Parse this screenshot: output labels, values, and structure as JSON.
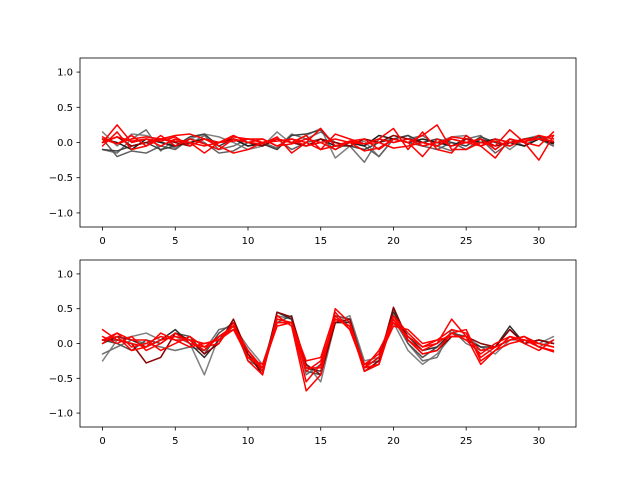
{
  "chart_data": [
    {
      "type": "line",
      "title": "",
      "xlabel": "",
      "ylabel": "",
      "xlim": [
        -1.55,
        32.55
      ],
      "ylim": [
        -1.2,
        1.2
      ],
      "xticks": [
        0,
        5,
        10,
        15,
        20,
        25,
        30
      ],
      "yticks": [
        -1.0,
        -0.5,
        0.0,
        0.5,
        1.0
      ],
      "xtick_labels": [
        "0",
        "5",
        "10",
        "15",
        "20",
        "25",
        "30"
      ],
      "ytick_labels": [
        "−1.0",
        "−0.5",
        "0.0",
        "0.5",
        "1.0"
      ],
      "grid": false,
      "x": [
        0,
        1,
        2,
        3,
        4,
        5,
        6,
        7,
        8,
        9,
        10,
        11,
        12,
        13,
        14,
        15,
        16,
        17,
        18,
        19,
        20,
        21,
        22,
        23,
        24,
        25,
        26,
        27,
        28,
        29,
        30,
        31
      ],
      "series": [
        {
          "color": "#808080",
          "values": [
            0.15,
            -0.05,
            0.12,
            0.1,
            0.02,
            -0.08,
            0.05,
            0.12,
            0.08,
            0.0,
            -0.1,
            -0.05,
            0.15,
            -0.02,
            0.1,
            0.2,
            -0.22,
            -0.05,
            0.02,
            -0.2,
            0.05,
            0.1,
            -0.05,
            0.0,
            0.08,
            0.1,
            -0.05,
            0.05,
            -0.1,
            0.05,
            0.1,
            0.05
          ]
        },
        {
          "color": "#707070",
          "values": [
            -0.1,
            -0.15,
            0.05,
            0.18,
            -0.12,
            0.05,
            -0.02,
            0.1,
            -0.1,
            -0.05,
            0.05,
            0.0,
            -0.08,
            0.12,
            0.05,
            0.15,
            0.0,
            -0.05,
            -0.28,
            0.05,
            0.0,
            0.05,
            0.1,
            -0.05,
            -0.12,
            0.05,
            0.1,
            -0.1,
            0.05,
            -0.05,
            0.1,
            0.0
          ]
        },
        {
          "color": "#606060",
          "values": [
            0.05,
            -0.2,
            -0.12,
            -0.15,
            -0.05,
            -0.1,
            0.05,
            0.0,
            -0.15,
            -0.12,
            0.0,
            -0.05,
            0.05,
            -0.1,
            0.0,
            0.05,
            -0.1,
            0.0,
            -0.05,
            -0.2,
            0.05,
            0.0,
            -0.05,
            -0.1,
            0.0,
            -0.1,
            0.05,
            -0.15,
            0.0,
            -0.05,
            0.05,
            -0.05
          ]
        },
        {
          "color": "#404040",
          "values": [
            -0.1,
            -0.12,
            -0.05,
            0.0,
            -0.1,
            -0.05,
            0.08,
            0.12,
            -0.05,
            0.05,
            -0.05,
            -0.02,
            -0.1,
            0.1,
            0.12,
            0.18,
            -0.05,
            -0.05,
            -0.1,
            0.0,
            0.05,
            0.1,
            0.0,
            0.05,
            0.0,
            -0.05,
            0.08,
            0.0,
            -0.05,
            0.05,
            0.08,
            0.0
          ]
        },
        {
          "color": "#202020",
          "values": [
            0.05,
            0.0,
            -0.1,
            0.05,
            0.0,
            -0.05,
            0.0,
            0.05,
            0.0,
            0.05,
            -0.05,
            0.0,
            0.05,
            0.0,
            -0.05,
            0.05,
            -0.05,
            0.0,
            -0.05,
            0.1,
            0.05,
            0.0,
            0.05,
            0.0,
            -0.05,
            0.05,
            0.0,
            0.05,
            0.0,
            -0.05,
            0.05,
            -0.02
          ]
        },
        {
          "color": "#8b0000",
          "values": [
            0.0,
            0.08,
            -0.05,
            0.0,
            0.05,
            0.0,
            -0.05,
            0.05,
            0.0,
            0.05,
            0.0,
            -0.05,
            0.05,
            0.0,
            -0.05,
            0.05,
            0.0,
            -0.05,
            0.05,
            0.0,
            0.1,
            0.05,
            0.0,
            -0.05,
            0.05,
            0.0,
            0.05,
            -0.05,
            0.0,
            0.05,
            0.05,
            0.0
          ]
        },
        {
          "color": "#ff0000",
          "values": [
            0.08,
            -0.02,
            0.1,
            -0.05,
            0.05,
            0.02,
            0.0,
            -0.15,
            0.0,
            0.1,
            0.0,
            -0.02,
            0.08,
            -0.15,
            0.0,
            0.2,
            -0.05,
            0.0,
            -0.12,
            -0.08,
            0.05,
            0.0,
            -0.2,
            0.05,
            -0.05,
            0.0,
            0.05,
            -0.1,
            0.05,
            0.0,
            -0.05,
            0.15
          ]
        },
        {
          "color": "#ff0000",
          "values": [
            0.0,
            0.25,
            0.0,
            0.05,
            0.02,
            0.08,
            -0.05,
            0.05,
            -0.05,
            -0.15,
            -0.1,
            0.0,
            0.05,
            0.0,
            0.1,
            -0.1,
            0.12,
            0.05,
            -0.02,
            0.05,
            0.2,
            -0.1,
            0.15,
            -0.1,
            -0.15,
            0.1,
            -0.05,
            -0.22,
            0.05,
            0.0,
            0.1,
            0.05
          ]
        },
        {
          "color": "#ff0000",
          "values": [
            -0.05,
            0.15,
            -0.1,
            -0.05,
            0.1,
            -0.05,
            0.05,
            -0.02,
            -0.1,
            0.05,
            0.0,
            0.05,
            -0.05,
            -0.02,
            0.05,
            0.0,
            -0.1,
            0.02,
            0.05,
            -0.1,
            0.05,
            0.0,
            0.1,
            0.25,
            -0.1,
            -0.1,
            0.0,
            -0.05,
            0.18,
            0.0,
            -0.25,
            0.1
          ]
        },
        {
          "color": "#ff0000",
          "values": [
            0.05,
            -0.02,
            0.05,
            0.08,
            0.05,
            0.1,
            0.12,
            0.05,
            0.0,
            0.08,
            0.05,
            0.05,
            -0.05,
            0.05,
            0.0,
            -0.1,
            -0.05,
            0.02,
            -0.02,
            0.0,
            -0.08,
            -0.05,
            0.0,
            -0.05,
            0.08,
            0.05,
            -0.05,
            0.02,
            -0.05,
            0.05,
            0.05,
            0.1
          ]
        },
        {
          "color": "#ff0000",
          "values": [
            0.0,
            0.08,
            0.02,
            0.05,
            -0.05,
            0.05,
            0.0,
            -0.05,
            0.0,
            0.02,
            0.05,
            0.0,
            0.02,
            0.05,
            -0.05,
            0.0,
            0.05,
            0.0,
            -0.02,
            0.05,
            0.0,
            0.05,
            -0.05,
            0.0,
            0.05,
            0.0,
            -0.05,
            0.05,
            0.0,
            0.02,
            0.05,
            0.02
          ]
        }
      ]
    },
    {
      "type": "line",
      "title": "",
      "xlabel": "",
      "ylabel": "",
      "xlim": [
        -1.55,
        32.55
      ],
      "ylim": [
        -1.2,
        1.2
      ],
      "xticks": [
        0,
        5,
        10,
        15,
        20,
        25,
        30
      ],
      "yticks": [
        -1.0,
        -0.5,
        0.0,
        0.5,
        1.0
      ],
      "xtick_labels": [
        "0",
        "5",
        "10",
        "15",
        "20",
        "25",
        "30"
      ],
      "ytick_labels": [
        "−1.0",
        "−0.5",
        "0.0",
        "0.5",
        "1.0"
      ],
      "grid": false,
      "x": [
        0,
        1,
        2,
        3,
        4,
        5,
        6,
        7,
        8,
        9,
        10,
        11,
        12,
        13,
        14,
        15,
        16,
        17,
        18,
        19,
        20,
        21,
        22,
        23,
        24,
        25,
        26,
        27,
        28,
        29,
        30,
        31
      ],
      "series": [
        {
          "color": "#808080",
          "values": [
            -0.25,
            0.05,
            0.1,
            0.15,
            0.05,
            0.1,
            0.0,
            -0.45,
            0.1,
            0.25,
            -0.05,
            -0.3,
            0.35,
            0.3,
            -0.3,
            -0.55,
            0.3,
            0.4,
            -0.25,
            -0.2,
            0.3,
            -0.1,
            -0.3,
            -0.15,
            0.1,
            0.1,
            -0.05,
            -0.15,
            0.05,
            0.05,
            0.0,
            0.1
          ]
        },
        {
          "color": "#707070",
          "values": [
            -0.15,
            -0.05,
            0.05,
            0.0,
            -0.05,
            -0.1,
            -0.05,
            -0.1,
            0.2,
            0.25,
            -0.25,
            -0.35,
            0.4,
            0.35,
            -0.45,
            -0.3,
            0.35,
            0.3,
            -0.4,
            -0.3,
            0.35,
            0.0,
            -0.25,
            -0.2,
            0.2,
            0.0,
            -0.1,
            -0.05,
            0.05,
            0.1,
            -0.05,
            0.05
          ]
        },
        {
          "color": "#505050",
          "values": [
            0.05,
            0.0,
            -0.1,
            0.05,
            0.0,
            0.15,
            0.1,
            -0.15,
            0.15,
            0.3,
            -0.2,
            -0.4,
            0.3,
            0.4,
            -0.4,
            -0.45,
            0.4,
            0.35,
            -0.3,
            -0.25,
            0.5,
            0.0,
            -0.2,
            -0.05,
            0.15,
            0.1,
            -0.1,
            -0.05,
            0.2,
            0.0,
            0.05,
            0.0
          ]
        },
        {
          "color": "#303030",
          "values": [
            0.0,
            0.1,
            0.05,
            -0.05,
            0.05,
            0.2,
            0.0,
            -0.2,
            0.05,
            0.3,
            -0.15,
            -0.4,
            0.45,
            0.35,
            -0.35,
            -0.4,
            0.3,
            0.3,
            -0.35,
            -0.2,
            0.45,
            0.1,
            -0.1,
            -0.05,
            0.15,
            0.05,
            -0.05,
            -0.05,
            0.25,
            0.0,
            0.05,
            0.0
          ]
        },
        {
          "color": "#8b0000",
          "values": [
            0.05,
            0.05,
            0.0,
            -0.28,
            -0.2,
            0.15,
            0.05,
            -0.15,
            0.0,
            0.35,
            -0.15,
            -0.45,
            0.45,
            0.38,
            -0.3,
            -0.45,
            0.3,
            0.35,
            -0.4,
            -0.25,
            0.52,
            0.05,
            -0.15,
            -0.1,
            0.1,
            0.1,
            0.0,
            -0.05,
            0.2,
            0.0,
            0.05,
            0.0
          ]
        },
        {
          "color": "#ff0000",
          "values": [
            0.2,
            0.05,
            0.0,
            -0.05,
            0.15,
            0.05,
            -0.05,
            0.0,
            0.05,
            0.2,
            -0.1,
            -0.4,
            0.3,
            0.3,
            -0.55,
            -0.3,
            0.4,
            0.2,
            -0.35,
            -0.1,
            0.3,
            0.1,
            -0.05,
            0.0,
            0.35,
            0.1,
            -0.3,
            -0.1,
            0.0,
            0.05,
            -0.05,
            -0.1
          ]
        },
        {
          "color": "#ff0000",
          "values": [
            0.05,
            0.15,
            -0.05,
            0.0,
            0.1,
            0.05,
            0.05,
            -0.1,
            0.1,
            0.25,
            -0.2,
            -0.35,
            0.25,
            0.3,
            -0.4,
            -0.25,
            0.35,
            0.25,
            -0.3,
            -0.15,
            0.4,
            0.15,
            -0.05,
            0.05,
            0.2,
            0.15,
            -0.2,
            -0.05,
            0.05,
            0.1,
            0.0,
            -0.05
          ]
        },
        {
          "color": "#ff0000",
          "values": [
            0.1,
            0.0,
            0.1,
            -0.1,
            0.0,
            0.15,
            0.0,
            -0.05,
            0.0,
            0.3,
            -0.25,
            -0.45,
            0.4,
            0.25,
            -0.68,
            -0.45,
            0.5,
            0.3,
            -0.35,
            -0.3,
            0.35,
            0.05,
            -0.1,
            0.0,
            0.15,
            0.2,
            -0.25,
            -0.1,
            0.1,
            0.0,
            -0.1,
            0.05
          ]
        },
        {
          "color": "#ff0000",
          "values": [
            0.0,
            0.15,
            0.05,
            0.05,
            -0.1,
            0.0,
            0.1,
            -0.05,
            0.1,
            0.2,
            -0.2,
            -0.3,
            0.3,
            0.3,
            -0.35,
            -0.35,
            0.35,
            0.25,
            -0.4,
            -0.3,
            0.4,
            0.05,
            -0.15,
            -0.1,
            0.15,
            0.05,
            -0.15,
            0.0,
            0.1,
            0.05,
            0.0,
            -0.05
          ]
        },
        {
          "color": "#ff0000",
          "values": [
            0.05,
            0.1,
            -0.1,
            -0.05,
            0.05,
            0.1,
            0.05,
            0.0,
            0.05,
            0.25,
            -0.1,
            -0.35,
            0.35,
            0.3,
            -0.25,
            -0.2,
            0.45,
            0.2,
            -0.35,
            -0.2,
            0.25,
            0.2,
            0.0,
            0.05,
            0.1,
            0.1,
            -0.1,
            -0.05,
            0.05,
            0.1,
            -0.05,
            -0.12
          ]
        }
      ]
    }
  ]
}
